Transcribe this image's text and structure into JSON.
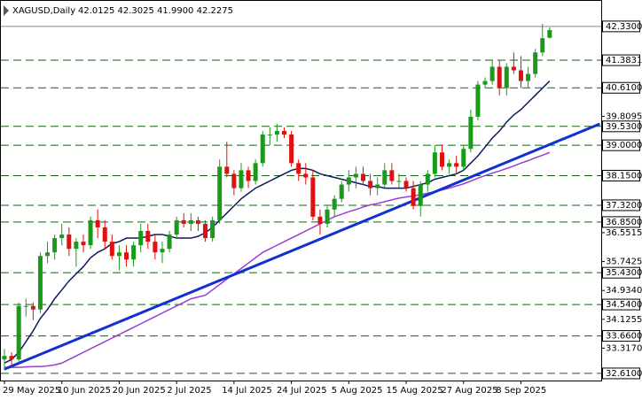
{
  "chart_data": {
    "type": "candlestick",
    "title": "XAGUSD,Daily",
    "header": "42.0125 42.3025 41.9900 42.2275",
    "categories": [
      "29 May 2025",
      null,
      null,
      null,
      null,
      null,
      null,
      null,
      "10 Jun 2025",
      null,
      null,
      null,
      null,
      null,
      null,
      null,
      "20 Jun 2025",
      null,
      null,
      null,
      null,
      null,
      null,
      null,
      "2 Jul 2025",
      null,
      null,
      null,
      null,
      null,
      null,
      null,
      "14 Jul 2025",
      null,
      null,
      null,
      null,
      null,
      null,
      null,
      "24 Jul 2025",
      null,
      null,
      null,
      null,
      null,
      null,
      null,
      "5 Aug 2025",
      null,
      null,
      null,
      null,
      null,
      null,
      null,
      "15 Aug 2025",
      null,
      null,
      null,
      null,
      null,
      null,
      null,
      "27 Aug 2025",
      null,
      null,
      null,
      null,
      null,
      null,
      null,
      "8 Sep 2025",
      null,
      null,
      null,
      null
    ],
    "open": [
      33.0,
      33.1,
      33.0,
      34.5,
      34.5,
      34.4,
      35.9,
      36.0,
      36.4,
      36.5,
      36.1,
      36.3,
      36.2,
      36.9,
      36.7,
      36.3,
      35.9,
      36.0,
      35.8,
      36.2,
      36.6,
      36.3,
      36.0,
      36.1,
      36.5,
      36.9,
      36.8,
      36.9,
      36.8,
      36.4,
      36.9,
      38.4,
      38.2,
      37.8,
      38.3,
      38.0,
      38.5,
      39.3,
      39.3,
      39.4,
      39.3,
      38.5,
      38.2,
      38.1,
      37.0,
      36.8,
      37.2,
      37.5,
      37.9,
      38.1,
      38.2,
      38.0,
      37.8,
      37.9,
      38.3,
      38.0,
      38.0,
      37.8,
      37.3,
      37.9,
      38.2,
      38.8,
      38.4,
      38.5,
      38.4,
      38.9,
      39.8,
      40.7,
      40.8,
      41.2,
      40.6,
      41.2,
      41.1,
      40.8,
      41.0,
      41.6,
      42.0125
    ],
    "high": [
      33.3,
      33.2,
      34.6,
      34.7,
      34.6,
      36.0,
      36.3,
      36.5,
      36.8,
      36.7,
      36.4,
      36.5,
      37.0,
      37.2,
      36.9,
      36.5,
      36.2,
      36.2,
      36.3,
      36.8,
      36.8,
      36.5,
      36.3,
      36.6,
      37.0,
      37.1,
      37.1,
      37.0,
      36.9,
      37.0,
      38.6,
      39.1,
      38.3,
      38.5,
      38.4,
      38.6,
      39.4,
      39.5,
      39.6,
      39.5,
      39.4,
      38.6,
      38.5,
      38.3,
      37.2,
      37.3,
      37.6,
      38.0,
      38.3,
      38.4,
      38.4,
      38.2,
      38.1,
      38.5,
      38.5,
      38.2,
      38.1,
      38.0,
      38.0,
      38.3,
      39.0,
      39.0,
      38.6,
      38.7,
      39.0,
      40.0,
      40.8,
      40.9,
      41.4,
      41.4,
      41.3,
      41.6,
      41.5,
      41.2,
      41.7,
      42.4,
      42.3025
    ],
    "low": [
      32.7,
      32.8,
      32.9,
      34.2,
      34.1,
      34.3,
      35.7,
      35.8,
      36.2,
      35.9,
      35.6,
      36.0,
      36.1,
      36.4,
      36.1,
      35.8,
      35.5,
      35.6,
      35.6,
      36.0,
      36.1,
      35.8,
      35.7,
      36.0,
      36.4,
      36.7,
      36.6,
      36.6,
      36.3,
      36.3,
      36.8,
      38.1,
      37.6,
      37.7,
      37.8,
      37.9,
      38.4,
      39.0,
      39.1,
      39.2,
      38.4,
      38.0,
      37.9,
      36.9,
      36.5,
      36.7,
      37.0,
      37.4,
      37.7,
      37.8,
      37.9,
      37.6,
      37.6,
      37.8,
      37.9,
      37.8,
      37.7,
      37.2,
      37.0,
      37.7,
      38.1,
      38.3,
      38.2,
      38.2,
      38.3,
      38.8,
      39.7,
      40.6,
      40.7,
      40.4,
      40.4,
      41.0,
      40.6,
      40.6,
      40.9,
      41.5,
      41.99
    ],
    "close": [
      33.1,
      33.0,
      34.5,
      34.5,
      34.4,
      35.9,
      36.0,
      36.4,
      36.5,
      36.1,
      36.3,
      36.2,
      36.9,
      36.7,
      36.3,
      35.9,
      36.0,
      35.8,
      36.2,
      36.6,
      36.3,
      36.0,
      36.1,
      36.5,
      36.9,
      36.8,
      36.9,
      36.8,
      36.4,
      36.9,
      38.4,
      38.2,
      37.8,
      38.3,
      38.0,
      38.5,
      39.3,
      39.3,
      39.4,
      39.3,
      38.5,
      38.2,
      38.1,
      37.0,
      36.8,
      37.2,
      37.5,
      37.9,
      38.1,
      38.2,
      38.0,
      37.8,
      37.9,
      38.3,
      38.0,
      38.0,
      37.8,
      37.3,
      37.9,
      38.2,
      38.8,
      38.4,
      38.5,
      38.4,
      38.9,
      39.8,
      40.7,
      40.8,
      41.2,
      40.6,
      41.2,
      41.1,
      40.8,
      41.0,
      41.6,
      42.0,
      42.2275
    ],
    "up_color": "#1a9a1a",
    "down_color": "#e01010",
    "series": [
      {
        "color": "#0d1a5c",
        "values": [
          32.9,
          33.0,
          33.2,
          33.5,
          33.8,
          34.15,
          34.4,
          34.7,
          34.95,
          35.2,
          35.4,
          35.6,
          35.85,
          36.0,
          36.1,
          36.25,
          36.3,
          36.4,
          36.4,
          36.4,
          36.45,
          36.5,
          36.5,
          36.45,
          36.4,
          36.4,
          36.4,
          36.45,
          36.55,
          36.7,
          36.9,
          37.1,
          37.3,
          37.5,
          37.65,
          37.8,
          37.9,
          38.0,
          38.1,
          38.2,
          38.3,
          38.35,
          38.35,
          38.3,
          38.2,
          38.15,
          38.1,
          38.05,
          38.0,
          37.95,
          37.9,
          37.85,
          37.85,
          37.8,
          37.8,
          37.8,
          37.8,
          37.85,
          37.9,
          37.95,
          38.05,
          38.1,
          38.15,
          38.2,
          38.3,
          38.5,
          38.7,
          38.95,
          39.2,
          39.4,
          39.65,
          39.85,
          40.0,
          40.2,
          40.4,
          40.6,
          40.8
        ]
      },
      {
        "color": "#9a3fcf",
        "values": [
          32.78,
          32.78,
          32.78,
          32.79,
          32.8,
          32.8,
          32.82,
          32.85,
          32.9,
          33.0,
          33.1,
          33.2,
          33.3,
          33.4,
          33.5,
          33.6,
          33.7,
          33.8,
          33.9,
          34.0,
          34.1,
          34.2,
          34.3,
          34.4,
          34.5,
          34.6,
          34.7,
          34.75,
          34.8,
          34.95,
          35.1,
          35.25,
          35.4,
          35.55,
          35.7,
          35.85,
          36.0,
          36.1,
          36.2,
          36.3,
          36.4,
          36.5,
          36.6,
          36.7,
          36.8,
          36.9,
          37.0,
          37.07,
          37.14,
          37.2,
          37.27,
          37.33,
          37.37,
          37.42,
          37.47,
          37.52,
          37.55,
          37.58,
          37.62,
          37.66,
          37.7,
          37.75,
          37.8,
          37.86,
          37.92,
          38.0,
          38.08,
          38.15,
          38.22,
          38.28,
          38.35,
          38.42,
          38.5,
          38.57,
          38.65,
          38.72,
          38.8
        ]
      }
    ],
    "trendline": {
      "color": "#1030d0",
      "x": [
        0,
        83
      ],
      "values": [
        32.73,
        39.6
      ]
    },
    "level_color": "#0a6a0a",
    "ylim": [
      32.41,
      43.07
    ],
    "yticks": [
      39.8095,
      36.5515,
      35.7425,
      {
        "value": 34.934,
        "label": "34.9340"
      },
      34.1255,
      {
        "value": 33.317,
        "label": "33.3170"
      }
    ],
    "levels": [
      {
        "value": 42.33,
        "label": "42.3300"
      },
      41.3831,
      {
        "value": 40.61,
        "label": "40.6100"
      },
      {
        "value": 39.53,
        "label": "39.5300"
      },
      {
        "value": 39.0,
        "label": "39.0000"
      },
      {
        "value": 38.15,
        "label": "38.1500"
      },
      {
        "value": 37.32,
        "label": "37.3200"
      },
      {
        "value": 36.85,
        "label": "36.8500"
      },
      {
        "value": 35.43,
        "label": "35.4300"
      },
      {
        "value": 34.54,
        "label": "34.5400"
      },
      {
        "value": 33.66,
        "label": "33.6600"
      },
      {
        "value": 32.61,
        "label": "32.6100"
      }
    ]
  }
}
